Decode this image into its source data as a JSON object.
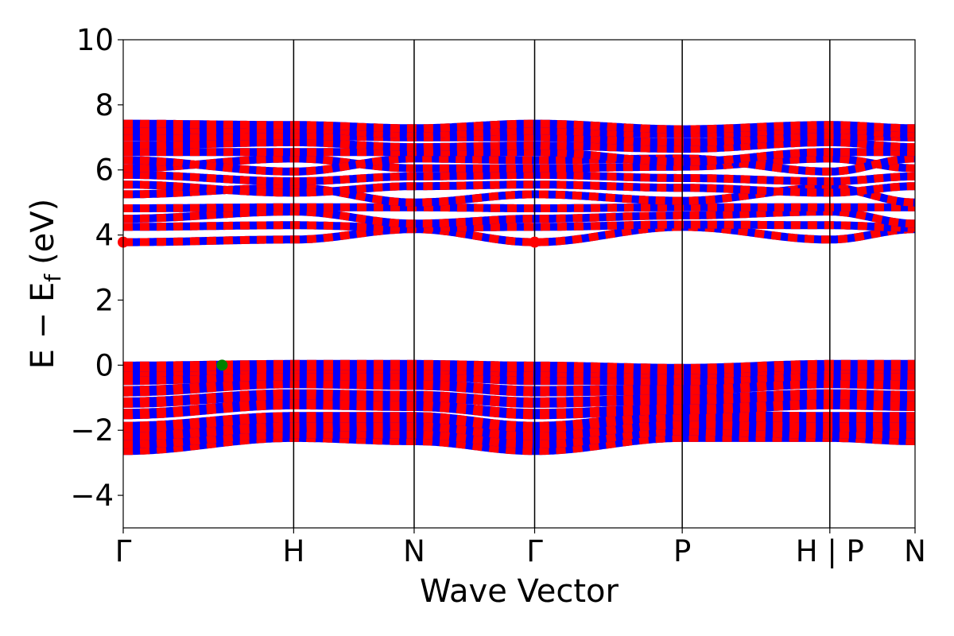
{
  "chart_data": {
    "type": "line",
    "title": "",
    "xlabel": "Wave Vector",
    "ylabel": "E − E",
    "ylabel_subscript": "f",
    "ylabel_unit": "(eV)",
    "ylim": [
      -5,
      10
    ],
    "yticks": [
      -4,
      -2,
      0,
      2,
      4,
      6,
      8,
      10
    ],
    "ytick_labels": [
      "−4",
      "−2",
      "0",
      "2",
      "4",
      "6",
      "8",
      "10"
    ],
    "kpath": [
      {
        "label": "Γ",
        "x": 0.0
      },
      {
        "label": "H",
        "x": 1.0
      },
      {
        "label": "N",
        "x": 1.707
      },
      {
        "label": "Γ",
        "x": 2.414
      },
      {
        "label": "P",
        "x": 3.28
      },
      {
        "label": "H | P",
        "x": 4.146
      },
      {
        "label": "N",
        "x": 4.646
      }
    ],
    "xlim": [
      0.0,
      4.646
    ],
    "grid": false,
    "colors": {
      "spin_up": "#ff0000",
      "spin_down": "#0000ff",
      "cbm_marker": "#ff0000",
      "vbm_marker": "#008000",
      "axis": "#000000"
    },
    "bands": {
      "conduction": [
        {
          "gamma": 3.78,
          "h": 3.86,
          "n": 4.18,
          "p": 4.25
        },
        {
          "gamma": 4.25,
          "h": 4.3,
          "n": 4.22,
          "p": 4.32
        },
        {
          "gamma": 4.5,
          "h": 4.72,
          "n": 4.35,
          "p": 4.6
        },
        {
          "gamma": 4.82,
          "h": 4.85,
          "n": 4.85,
          "p": 4.85
        },
        {
          "gamma": 5.25,
          "h": 5.45,
          "n": 5.0,
          "p": 5.05
        },
        {
          "gamma": 5.55,
          "h": 5.3,
          "n": 5.5,
          "p": 5.45
        },
        {
          "gamma": 5.85,
          "h": 5.65,
          "n": 5.8,
          "p": 5.75
        },
        {
          "gamma": 6.05,
          "h": 6.35,
          "n": 6.05,
          "p": 6.1
        },
        {
          "gamma": 6.3,
          "h": 5.95,
          "n": 6.35,
          "p": 6.35
        },
        {
          "gamma": 6.55,
          "h": 6.55,
          "n": 6.55,
          "p": 6.25
        },
        {
          "gamma": 6.75,
          "h": 6.85,
          "n": 6.7,
          "p": 6.65
        },
        {
          "gamma": 7.0,
          "h": 7.05,
          "n": 7.0,
          "p": 6.85
        },
        {
          "gamma": 7.2,
          "h": 7.25,
          "n": 7.1,
          "p": 7.1
        },
        {
          "gamma": 7.42,
          "h": 7.38,
          "n": 7.28,
          "p": 7.25
        }
      ],
      "valence": [
        {
          "gamma": -2.6,
          "h": -2.2,
          "n": -2.3,
          "p": -2.2
        },
        {
          "gamma": -2.4,
          "h": -2.1,
          "n": -2.1,
          "p": -2.0
        },
        {
          "gamma": -2.15,
          "h": -1.9,
          "n": -1.85,
          "p": -1.8
        },
        {
          "gamma": -1.9,
          "h": -1.6,
          "n": -1.6,
          "p": -1.55
        },
        {
          "gamma": -1.5,
          "h": -1.2,
          "n": -1.25,
          "p": -1.35
        },
        {
          "gamma": -1.15,
          "h": -0.9,
          "n": -0.95,
          "p": -1.05
        },
        {
          "gamma": -0.8,
          "h": -0.55,
          "n": -0.6,
          "p": -0.75
        },
        {
          "gamma": -0.45,
          "h": -0.3,
          "n": -0.3,
          "p": -0.45
        },
        {
          "gamma": -0.2,
          "h": -0.08,
          "n": -0.1,
          "p": -0.25
        },
        {
          "gamma": -0.05,
          "h": 0.0,
          "n": 0.0,
          "p": -0.12
        }
      ]
    },
    "markers": [
      {
        "name": "CBM",
        "x": 0.0,
        "y": 3.78,
        "color": "#ff0000"
      },
      {
        "name": "CBM",
        "x": 2.414,
        "y": 3.78,
        "color": "#ff0000"
      },
      {
        "name": "VBM",
        "x": 0.58,
        "y": 0.0,
        "color": "#008000"
      }
    ]
  }
}
